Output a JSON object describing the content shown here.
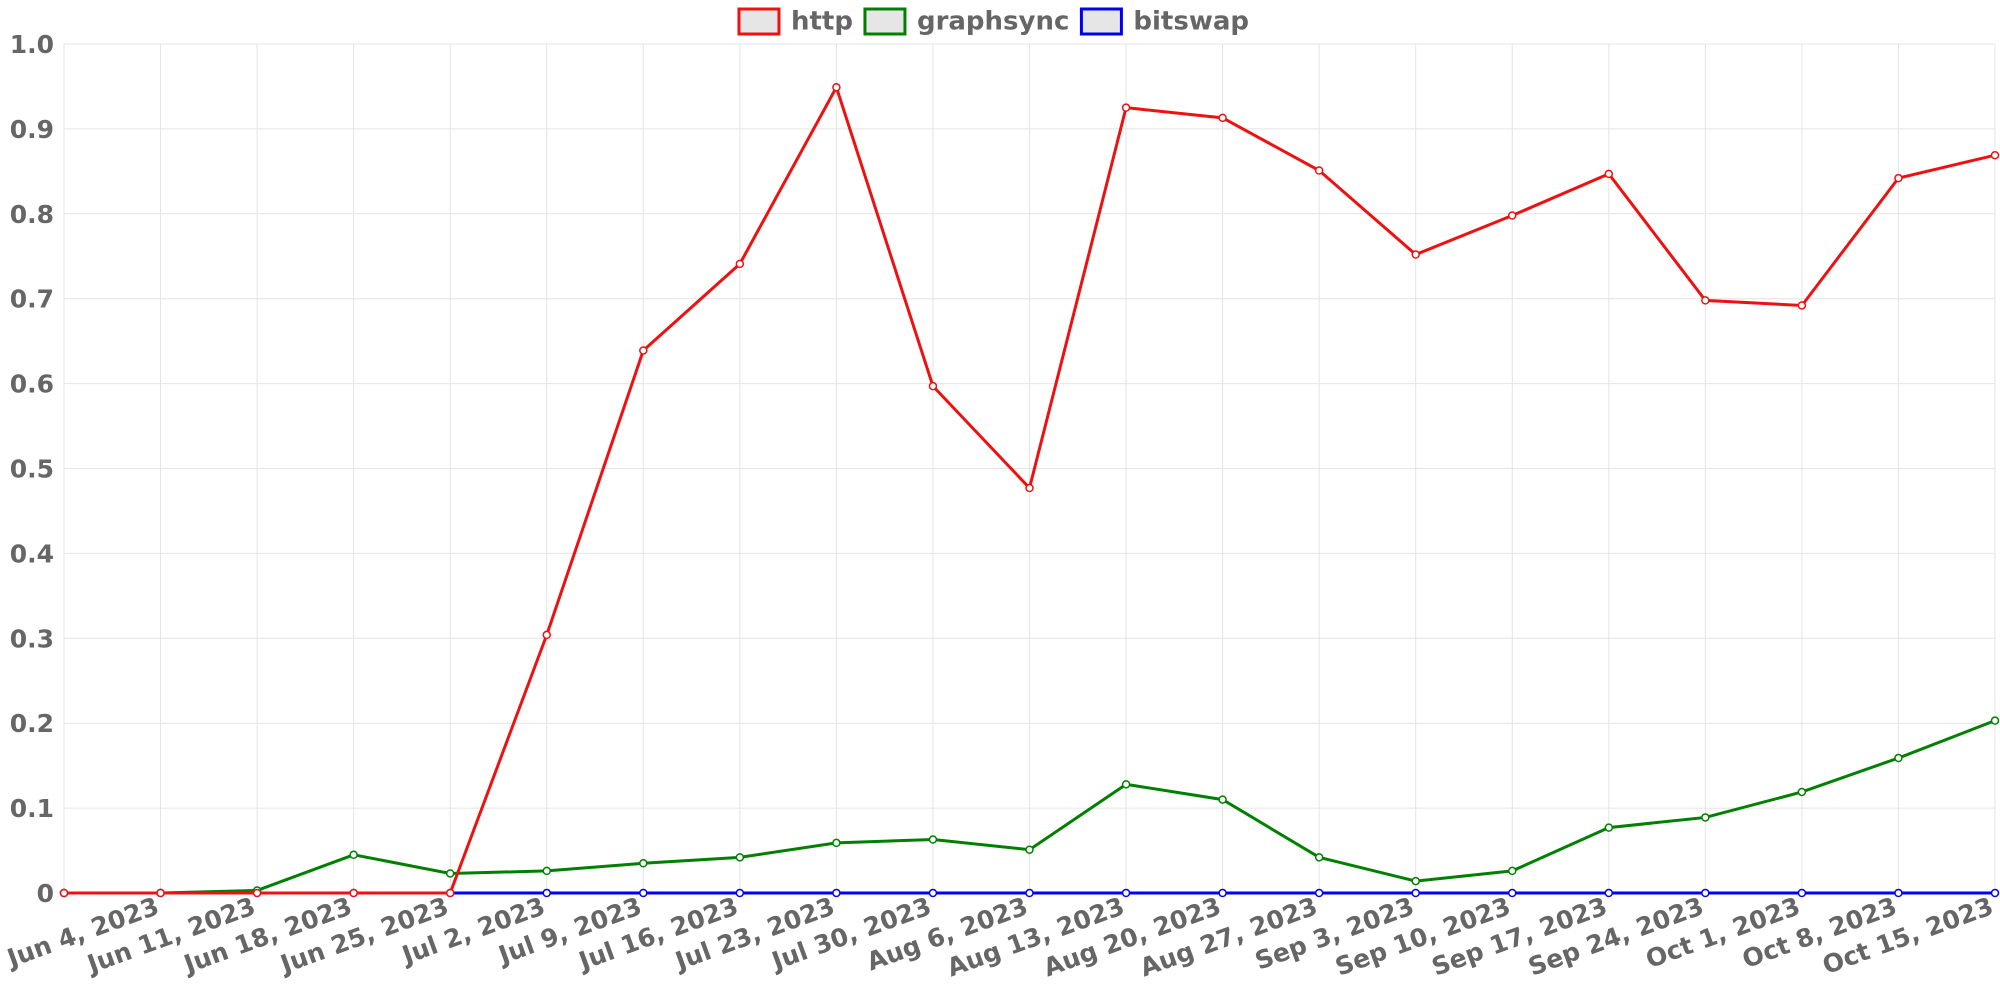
{
  "chart_data": {
    "type": "line",
    "categories": [
      null,
      "Jun 4, 2023",
      "Jun 11, 2023",
      "Jun 18, 2023",
      "Jun 25, 2023",
      "Jul 2, 2023",
      "Jul 9, 2023",
      "Jul 16, 2023",
      "Jul 23, 2023",
      "Jul 30, 2023",
      "Aug 6, 2023",
      "Aug 13, 2023",
      "Aug 20, 2023",
      "Aug 27, 2023",
      "Sep 3, 2023",
      "Sep 10, 2023",
      "Sep 17, 2023",
      "Sep 24, 2023",
      "Oct 1, 2023",
      "Oct 8, 2023",
      "Oct 15, 2023"
    ],
    "series": [
      {
        "name": "http",
        "color": "#ee1111",
        "values": [
          0,
          0,
          0,
          0,
          0,
          0.304,
          0.639,
          0.741,
          0.949,
          0.597,
          0.477,
          0.925,
          0.913,
          0.851,
          0.752,
          0.798,
          0.847,
          0.698,
          0.692,
          0.842,
          0.869
        ]
      },
      {
        "name": "graphsync",
        "color": "#008000",
        "values": [
          0,
          0,
          0.003,
          0.045,
          0.023,
          0.026,
          0.035,
          0.042,
          0.059,
          0.063,
          0.051,
          0.128,
          0.11,
          0.042,
          0.014,
          0.026,
          0.077,
          0.089,
          0.119,
          0.159,
          0.203
        ]
      },
      {
        "name": "bitswap",
        "color": "#0000ee",
        "values": [
          0,
          0,
          0,
          0,
          0,
          0,
          0,
          0,
          0,
          0,
          0,
          0,
          0,
          0,
          0,
          0,
          0,
          0,
          0,
          0,
          0
        ]
      }
    ],
    "ylim": [
      0,
      1
    ],
    "yticks": [
      0,
      0.1,
      0.2,
      0.3,
      0.4,
      0.5,
      0.6,
      0.7,
      0.8,
      0.9,
      {
        "value": 1,
        "label": "1.0"
      }
    ],
    "grid": true,
    "legend": "top"
  }
}
